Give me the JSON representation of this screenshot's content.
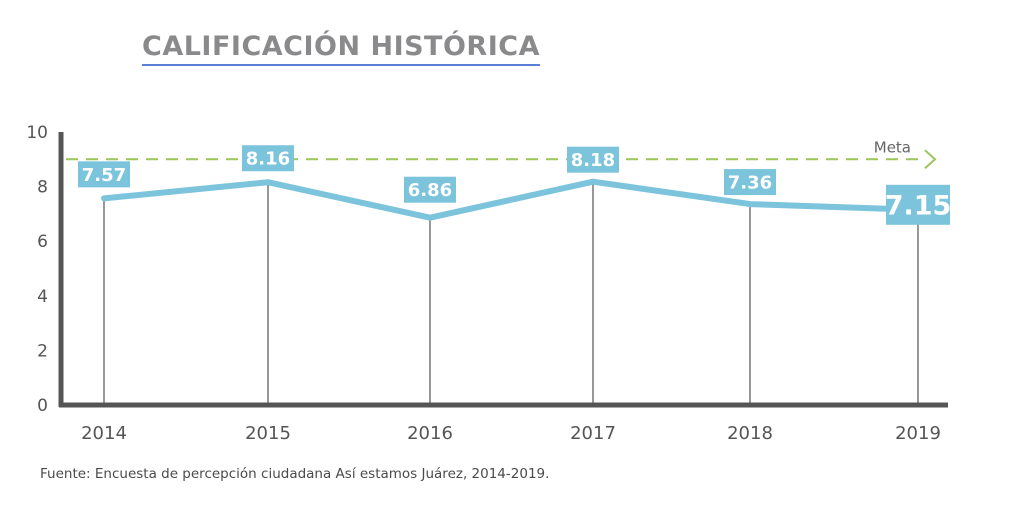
{
  "title": "CALIFICACIÓN HISTÓRICA",
  "source": "Fuente: Encuesta de percepción ciudadana Así estamos Juárez, 2014-2019.",
  "chart_data": {
    "type": "line",
    "title": "CALIFICACIÓN HISTÓRICA",
    "xlabel": "",
    "ylabel": "",
    "ylim": [
      0,
      10
    ],
    "yticks": [
      0,
      2,
      4,
      6,
      8,
      10
    ],
    "categories": [
      "2014",
      "2015",
      "2016",
      "2017",
      "2018",
      "2019"
    ],
    "values": [
      7.57,
      8.16,
      6.86,
      8.18,
      7.36,
      7.15
    ],
    "data_labels": [
      "7.57",
      "8.16",
      "6.86",
      "8.18",
      "7.36",
      "7.15"
    ],
    "reference_line": {
      "label": "Meta",
      "value": 9
    },
    "colors": {
      "line": "#7cc3dc",
      "label_bg": "#7cc3dc",
      "meta": "#9bc65a",
      "axis": "#555555"
    },
    "grid": false
  }
}
